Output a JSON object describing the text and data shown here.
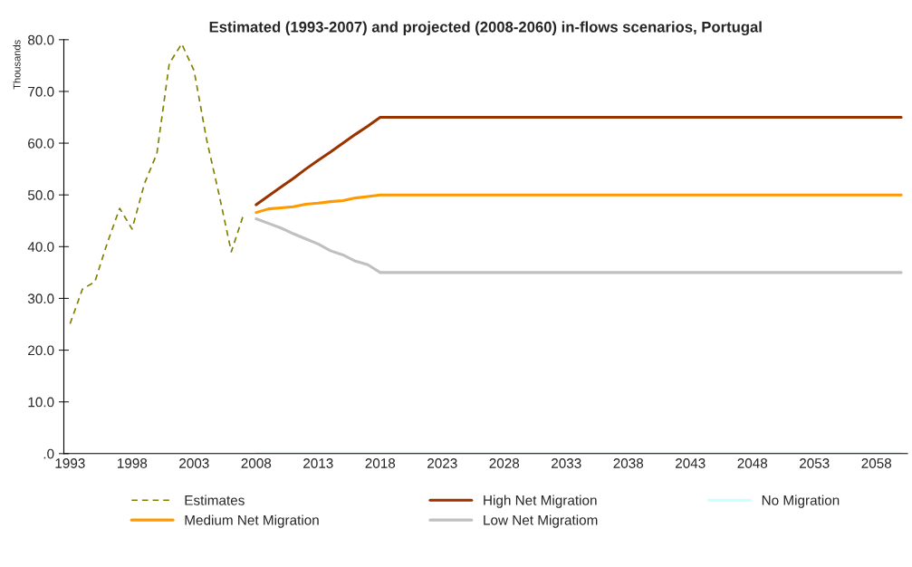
{
  "chart_data": {
    "type": "line",
    "title": "Estimated (1993-2007) and projected (2008-2060) in-flows scenarios, Portugal",
    "ylabel": "Thousands",
    "xlim": [
      1992.5,
      2060.5
    ],
    "xticks": [
      1993,
      1998,
      2003,
      2008,
      2013,
      2018,
      2023,
      2028,
      2033,
      2038,
      2043,
      2048,
      2053,
      2058
    ],
    "ylim": [
      0,
      80
    ],
    "yticks": [
      {
        "value": 0,
        "label": ".0"
      },
      {
        "value": 10,
        "label": "10.0"
      },
      {
        "value": 20,
        "label": "20.0"
      },
      {
        "value": 30,
        "label": "30.0"
      },
      {
        "value": 40,
        "label": "40.0"
      },
      {
        "value": 50,
        "label": "50.0"
      },
      {
        "value": 60,
        "label": "60.0"
      },
      {
        "value": 70,
        "label": "70.0"
      },
      {
        "value": 80,
        "label": "80.0"
      }
    ],
    "grid": false,
    "legend": "bottom",
    "marker": "none",
    "series": [
      {
        "name": "Estimates",
        "color": "#808000",
        "line_style": "dashed",
        "x": [
          1993,
          1994,
          1995,
          1996,
          1997,
          1998,
          1999,
          2000,
          2001,
          2002,
          2003,
          2004,
          2005,
          2006,
          2007
        ],
        "values": [
          25.1,
          31.8,
          33.2,
          40.7,
          47.4,
          43.4,
          52.2,
          58.0,
          75.4,
          79.2,
          74.0,
          60.8,
          50.2,
          39.0,
          46.3
        ]
      },
      {
        "name": "Medium Net Migration",
        "color": "#ff9900",
        "line_style": "solid",
        "x": [
          2008,
          2009,
          2010,
          2011,
          2012,
          2013,
          2014,
          2015,
          2016,
          2017,
          2018,
          2060
        ],
        "values": [
          46.6,
          47.3,
          47.5,
          47.7,
          48.2,
          48.4,
          48.7,
          48.9,
          49.4,
          49.7,
          50.0,
          50.0
        ]
      },
      {
        "name": "High Net Migration",
        "color": "#993300",
        "line_style": "solid",
        "x": [
          2008,
          2009,
          2010,
          2011,
          2012,
          2013,
          2014,
          2015,
          2016,
          2017,
          2018,
          2060
        ],
        "values": [
          48.1,
          49.8,
          51.5,
          53.2,
          55.0,
          56.7,
          58.3,
          60.0,
          61.7,
          63.3,
          65.0,
          65.0
        ]
      },
      {
        "name": "Low Net Migratiom",
        "color": "#c0c0c0",
        "line_style": "solid",
        "x": [
          2008,
          2009,
          2010,
          2011,
          2012,
          2013,
          2014,
          2015,
          2016,
          2017,
          2018,
          2060
        ],
        "values": [
          45.4,
          44.5,
          43.6,
          42.5,
          41.5,
          40.5,
          39.2,
          38.4,
          37.2,
          36.5,
          35.0,
          35.0
        ]
      },
      {
        "name": "No Migration",
        "color": "#ccffff",
        "line_style": "solid",
        "x": [
          2008,
          2060
        ],
        "values": [
          0,
          0
        ]
      }
    ]
  }
}
